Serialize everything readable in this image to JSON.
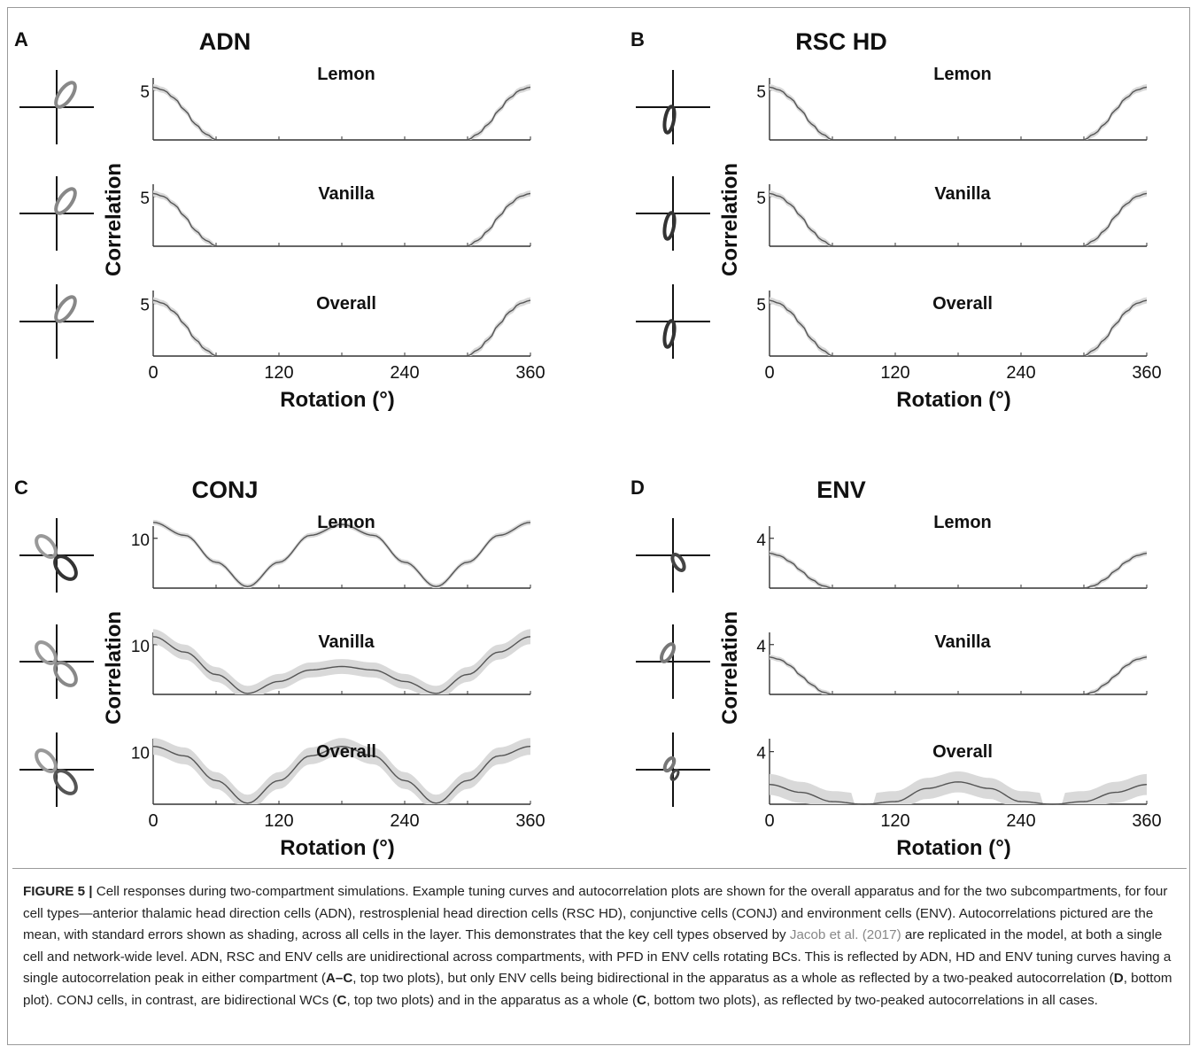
{
  "panels": [
    {
      "letter": "A",
      "title": "ADN",
      "col": 0,
      "row": 0,
      "ylabel": "Correlation",
      "xlabel": "Rotation (°)",
      "xticks": [
        "0",
        "120",
        "240",
        "360"
      ],
      "subplots": [
        {
          "label": "Lemon",
          "ytick": "5"
        },
        {
          "label": "Vanilla",
          "ytick": "5"
        },
        {
          "label": "Overall",
          "ytick": "5"
        }
      ]
    },
    {
      "letter": "B",
      "title": "RSC HD",
      "col": 1,
      "row": 0,
      "ylabel": "Correlation",
      "xlabel": "Rotation (°)",
      "xticks": [
        "0",
        "120",
        "240",
        "360"
      ],
      "subplots": [
        {
          "label": "Lemon",
          "ytick": "5"
        },
        {
          "label": "Vanilla",
          "ytick": "5"
        },
        {
          "label": "Overall",
          "ytick": "5"
        }
      ]
    },
    {
      "letter": "C",
      "title": "CONJ",
      "col": 0,
      "row": 1,
      "ylabel": "Correlation",
      "xlabel": "Rotation (°)",
      "xticks": [
        "0",
        "120",
        "240",
        "360"
      ],
      "subplots": [
        {
          "label": "Lemon",
          "ytick": "10"
        },
        {
          "label": "Vanilla",
          "ytick": "10"
        },
        {
          "label": "Overall",
          "ytick": "10"
        }
      ]
    },
    {
      "letter": "D",
      "title": "ENV",
      "col": 1,
      "row": 1,
      "ylabel": "Correlation",
      "xlabel": "Rotation (°)",
      "xticks": [
        "0",
        "120",
        "240",
        "360"
      ],
      "subplots": [
        {
          "label": "Lemon",
          "ytick": "4"
        },
        {
          "label": "Vanilla",
          "ytick": "4"
        },
        {
          "label": "Overall",
          "ytick": "4"
        }
      ]
    }
  ],
  "chart_data": [
    {
      "panel": "A",
      "type": "line",
      "xlim": [
        0,
        360
      ],
      "series": [
        {
          "name": "Lemon",
          "x": [
            0,
            10,
            20,
            30,
            40,
            50,
            60,
            300,
            310,
            320,
            330,
            340,
            350,
            360
          ],
          "y": [
            5.3,
            5.0,
            4.2,
            3.0,
            1.6,
            0.6,
            0,
            0,
            0.6,
            1.6,
            3.0,
            4.2,
            5.0,
            5.3
          ],
          "ytick": 5
        },
        {
          "name": "Vanilla",
          "x": [
            0,
            10,
            20,
            30,
            40,
            50,
            60,
            300,
            310,
            320,
            330,
            340,
            350,
            360
          ],
          "y": [
            5.3,
            5.0,
            4.2,
            3.0,
            1.6,
            0.6,
            0,
            0,
            0.6,
            1.6,
            3.0,
            4.2,
            5.0,
            5.3
          ],
          "ytick": 5
        },
        {
          "name": "Overall",
          "x": [
            0,
            10,
            20,
            30,
            40,
            50,
            60,
            300,
            310,
            320,
            330,
            340,
            350,
            360
          ],
          "y": [
            5.3,
            5.0,
            4.2,
            3.0,
            1.6,
            0.6,
            0,
            0,
            0.6,
            1.6,
            3.0,
            4.2,
            5.0,
            5.3
          ],
          "ytick": 5
        }
      ]
    },
    {
      "panel": "B",
      "type": "line",
      "xlim": [
        0,
        360
      ],
      "series": [
        {
          "name": "Lemon",
          "x": [
            0,
            10,
            20,
            30,
            40,
            50,
            60,
            300,
            310,
            320,
            330,
            340,
            350,
            360
          ],
          "y": [
            5.3,
            5.0,
            4.2,
            3.0,
            1.6,
            0.6,
            0,
            0,
            0.6,
            1.6,
            3.0,
            4.2,
            5.0,
            5.3
          ],
          "ytick": 5
        },
        {
          "name": "Vanilla",
          "x": [
            0,
            10,
            20,
            30,
            40,
            50,
            60,
            300,
            310,
            320,
            330,
            340,
            350,
            360
          ],
          "y": [
            5.3,
            5.0,
            4.2,
            3.0,
            1.6,
            0.6,
            0,
            0,
            0.6,
            1.6,
            3.0,
            4.2,
            5.0,
            5.3
          ],
          "ytick": 5
        },
        {
          "name": "Overall",
          "x": [
            0,
            10,
            20,
            30,
            40,
            50,
            60,
            300,
            310,
            320,
            330,
            340,
            350,
            360
          ],
          "y": [
            5.3,
            5.0,
            4.2,
            3.0,
            1.6,
            0.6,
            0,
            0,
            0.6,
            1.6,
            3.0,
            4.2,
            5.0,
            5.3
          ],
          "ytick": 5
        }
      ]
    },
    {
      "panel": "C",
      "type": "line",
      "xlim": [
        0,
        360
      ],
      "series": [
        {
          "name": "Lemon",
          "x": [
            0,
            30,
            60,
            90,
            120,
            150,
            180,
            210,
            240,
            270,
            300,
            330,
            360
          ],
          "y": [
            13.2,
            10.6,
            5.2,
            0.3,
            5.2,
            10.6,
            12.8,
            10.6,
            5.2,
            0.3,
            5.2,
            10.6,
            13.2
          ],
          "ytick": 10
        },
        {
          "name": "Vanilla",
          "x": [
            0,
            30,
            60,
            90,
            120,
            150,
            180,
            210,
            240,
            270,
            300,
            330,
            360
          ],
          "y": [
            11.6,
            8.5,
            4.0,
            0.2,
            2.6,
            4.9,
            5.6,
            4.9,
            2.6,
            0.2,
            4.0,
            8.5,
            11.6
          ],
          "ytick": 10
        },
        {
          "name": "Overall",
          "x": [
            0,
            30,
            60,
            90,
            120,
            150,
            180,
            210,
            240,
            270,
            300,
            330,
            360
          ],
          "y": [
            11.0,
            9.2,
            4.5,
            0.2,
            4.5,
            9.2,
            11.0,
            9.2,
            4.5,
            0.2,
            4.5,
            9.2,
            11.0
          ],
          "ytick": 10
        }
      ]
    },
    {
      "panel": "D",
      "type": "line",
      "xlim": [
        0,
        360
      ],
      "series": [
        {
          "name": "Lemon",
          "x": [
            0,
            10,
            20,
            30,
            40,
            50,
            60,
            300,
            310,
            320,
            330,
            340,
            350,
            360
          ],
          "y": [
            2.8,
            2.6,
            2.1,
            1.4,
            0.7,
            0.2,
            0,
            0,
            0.2,
            0.7,
            1.4,
            2.1,
            2.6,
            2.8
          ],
          "ytick": 4
        },
        {
          "name": "Vanilla",
          "x": [
            0,
            10,
            20,
            30,
            40,
            50,
            60,
            300,
            310,
            320,
            330,
            340,
            350,
            360
          ],
          "y": [
            3.0,
            2.8,
            2.3,
            1.5,
            0.8,
            0.2,
            0,
            0,
            0.2,
            0.8,
            1.5,
            2.3,
            2.8,
            3.0
          ],
          "ytick": 4
        },
        {
          "name": "Overall",
          "x": [
            0,
            30,
            60,
            90,
            120,
            150,
            180,
            210,
            240,
            270,
            300,
            330,
            360
          ],
          "y": [
            1.5,
            0.9,
            0.2,
            0,
            0.2,
            1.2,
            1.7,
            1.2,
            0.2,
            0,
            0.2,
            0.9,
            1.5
          ],
          "ytick": 4
        }
      ]
    }
  ],
  "caption": {
    "label": "FIGURE 5 |",
    "parts": [
      {
        "t": " Cell responses during two-compartment simulations. Example tuning curves and autocorrelation plots are shown for the overall apparatus and for the two subcompartments, for four cell types—anterior thalamic head direction cells (ADN), restrosplenial head direction cells (RSC HD), conjunctive cells (CONJ) and environment cells (ENV). Autocorrelations pictured are the mean, with standard errors shown as shading, across all cells in the layer. This demonstrates that the key cell types observed by "
      },
      {
        "t": "Jacob et al. (2017)",
        "link": true
      },
      {
        "t": " are replicated in the model, at both a single cell and network-wide level. ADN, RSC and ENV cells are unidirectional across compartments, with PFD in ENV cells rotating BCs. This is reflected by ADN, HD and ENV tuning curves having a single autocorrelation peak in either compartment ("
      },
      {
        "t": "A–C",
        "bold": true
      },
      {
        "t": ", top two plots), but only ENV cells being bidirectional in the apparatus as a whole as reflected by a two-peaked autocorrelation ("
      },
      {
        "t": "D",
        "bold": true
      },
      {
        "t": ", bottom plot). CONJ cells, in contrast, are bidirectional WCs ("
      },
      {
        "t": "C",
        "bold": true
      },
      {
        "t": ", top two plots) and in the apparatus as a whole ("
      },
      {
        "t": "C",
        "bold": true
      },
      {
        "t": ", bottom two plots), as reflected by two-peaked autocorrelations in all cases."
      }
    ]
  }
}
